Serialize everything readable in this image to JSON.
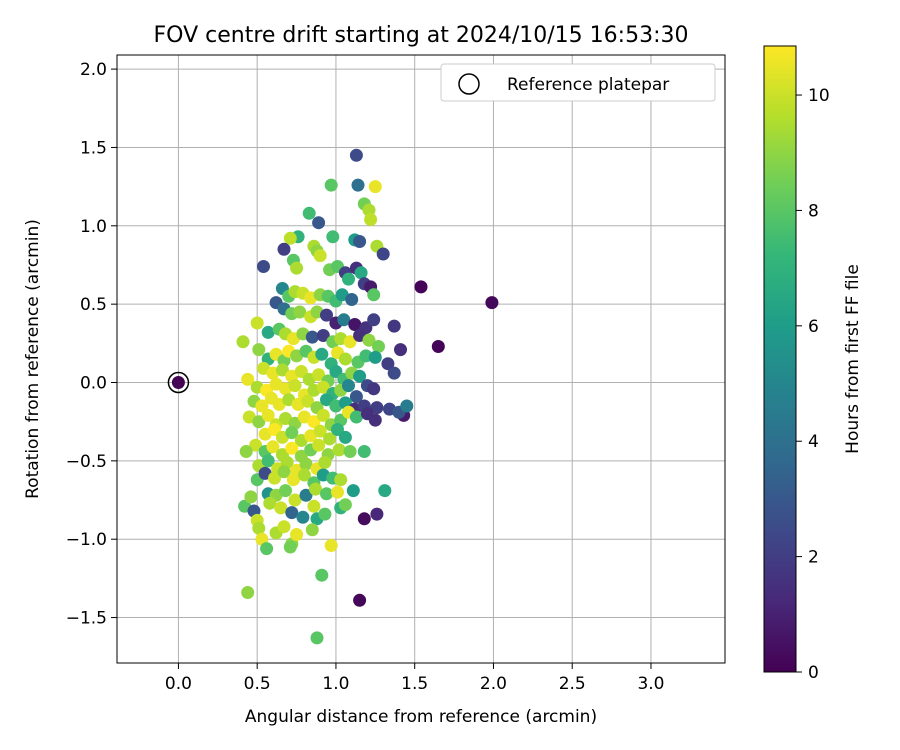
{
  "chart_data": {
    "type": "scatter",
    "title": "FOV centre drift starting at 2024/10/15 16:53:30",
    "xlabel": "Angular distance from reference (arcmin)",
    "ylabel": "Rotation from reference (arcmin)",
    "xlim": [
      -0.39,
      3.47
    ],
    "ylim": [
      -1.79,
      2.09
    ],
    "xticks": [
      0.0,
      0.5,
      1.0,
      1.5,
      2.0,
      2.5,
      3.0
    ],
    "xtick_labels": [
      "0.0",
      "0.5",
      "1.0",
      "1.5",
      "2.0",
      "2.5",
      "3.0"
    ],
    "yticks": [
      -1.5,
      -1.0,
      -0.5,
      0.0,
      0.5,
      1.0,
      1.5,
      2.0
    ],
    "ytick_labels": [
      "−1.5",
      "−1.0",
      "−0.5",
      "0.0",
      "0.5",
      "1.0",
      "1.5",
      "2.0"
    ],
    "grid": true,
    "legend": {
      "label": "Reference platepar",
      "position": "top-right"
    },
    "reference_point": {
      "x": 0.0,
      "y": 0.0
    },
    "colorbar": {
      "label": "Hours from first FF file",
      "colormap": "viridis",
      "range": [
        0,
        10.85
      ],
      "ticks": [
        0,
        2,
        4,
        6,
        8,
        10
      ],
      "tick_labels": [
        "0",
        "2",
        "4",
        "6",
        "8",
        "10"
      ]
    },
    "colors": {
      "viridis": [
        "#440154",
        "#482878",
        "#3e4989",
        "#31688e",
        "#26828e",
        "#1f9e89",
        "#35b779",
        "#6ece58",
        "#b5de2b",
        "#fde725"
      ],
      "grid": "#b0b0b0",
      "reference_edge": "#000000"
    },
    "points": [
      [
        0.0,
        0.0,
        0.05
      ],
      [
        1.54,
        0.61,
        0.1
      ],
      [
        1.99,
        0.51,
        0.2
      ],
      [
        1.65,
        0.23,
        0.1
      ],
      [
        1.15,
        -1.39,
        0.2
      ],
      [
        1.18,
        -0.87,
        0.3
      ],
      [
        1.26,
        -0.84,
        1.2
      ],
      [
        1.43,
        -0.21,
        0.8
      ],
      [
        1.13,
        1.45,
        2.5
      ],
      [
        1.14,
        1.26,
        4.0
      ],
      [
        1.25,
        1.25,
        10.5
      ],
      [
        0.97,
        1.26,
        8.0
      ],
      [
        1.18,
        1.14,
        8.5
      ],
      [
        1.21,
        1.1,
        9.5
      ],
      [
        1.22,
        1.04,
        9.8
      ],
      [
        0.83,
        1.08,
        7.5
      ],
      [
        0.89,
        1.02,
        3.0
      ],
      [
        0.76,
        0.93,
        7.0
      ],
      [
        0.71,
        0.92,
        9.8
      ],
      [
        0.98,
        0.93,
        7.5
      ],
      [
        1.12,
        0.91,
        6.0
      ],
      [
        1.15,
        0.9,
        3.0
      ],
      [
        1.26,
        0.87,
        9.5
      ],
      [
        1.3,
        0.82,
        2.3
      ],
      [
        0.54,
        0.74,
        2.5
      ],
      [
        0.67,
        0.85,
        2.0
      ],
      [
        0.86,
        0.87,
        9.5
      ],
      [
        0.88,
        0.84,
        9.0
      ],
      [
        0.9,
        0.81,
        10.0
      ],
      [
        0.73,
        0.78,
        8.0
      ],
      [
        0.75,
        0.73,
        9.5
      ],
      [
        0.96,
        0.72,
        8.5
      ],
      [
        1.01,
        0.74,
        8.0
      ],
      [
        1.06,
        0.7,
        2.0
      ],
      [
        1.08,
        0.66,
        7.0
      ],
      [
        1.13,
        0.73,
        1.5
      ],
      [
        1.16,
        0.7,
        6.5
      ],
      [
        1.18,
        0.63,
        2.0
      ],
      [
        1.22,
        0.61,
        0.8
      ],
      [
        0.66,
        0.6,
        5.0
      ],
      [
        0.7,
        0.55,
        8.0
      ],
      [
        0.74,
        0.58,
        9.5
      ],
      [
        0.79,
        0.57,
        10.0
      ],
      [
        0.84,
        0.54,
        10.5
      ],
      [
        0.9,
        0.56,
        9.0
      ],
      [
        0.95,
        0.55,
        8.0
      ],
      [
        1.0,
        0.52,
        7.5
      ],
      [
        1.04,
        0.56,
        6.0
      ],
      [
        1.1,
        0.53,
        3.5
      ],
      [
        1.24,
        0.56,
        8.0
      ],
      [
        0.62,
        0.51,
        3.0
      ],
      [
        0.67,
        0.47,
        4.0
      ],
      [
        0.72,
        0.44,
        8.5
      ],
      [
        0.77,
        0.45,
        9.0
      ],
      [
        0.84,
        0.42,
        10.0
      ],
      [
        0.88,
        0.45,
        9.0
      ],
      [
        0.94,
        0.43,
        2.0
      ],
      [
        1.0,
        0.38,
        1.0
      ],
      [
        1.05,
        0.4,
        4.5
      ],
      [
        1.12,
        0.37,
        0.6
      ],
      [
        1.19,
        0.35,
        1.6
      ],
      [
        1.24,
        0.4,
        2.1
      ],
      [
        1.37,
        0.36,
        1.8
      ],
      [
        0.5,
        0.38,
        10.0
      ],
      [
        0.57,
        0.32,
        6.5
      ],
      [
        0.64,
        0.34,
        8.0
      ],
      [
        0.68,
        0.31,
        9.5
      ],
      [
        0.73,
        0.28,
        10.5
      ],
      [
        0.79,
        0.31,
        9.0
      ],
      [
        0.85,
        0.29,
        3.0
      ],
      [
        0.92,
        0.3,
        2.0
      ],
      [
        0.98,
        0.26,
        8.5
      ],
      [
        1.03,
        0.28,
        9.5
      ],
      [
        1.09,
        0.26,
        10.5
      ],
      [
        1.15,
        0.3,
        1.5
      ],
      [
        1.21,
        0.27,
        9.0
      ],
      [
        1.27,
        0.23,
        8.5
      ],
      [
        0.41,
        0.26,
        9.5
      ],
      [
        0.51,
        0.21,
        9.0
      ],
      [
        0.57,
        0.15,
        7.0
      ],
      [
        0.62,
        0.18,
        10.5
      ],
      [
        0.67,
        0.14,
        8.5
      ],
      [
        0.7,
        0.2,
        10.8
      ],
      [
        0.75,
        0.17,
        9.0
      ],
      [
        0.81,
        0.2,
        8.0
      ],
      [
        0.86,
        0.16,
        10.0
      ],
      [
        0.91,
        0.18,
        6.5
      ],
      [
        0.97,
        0.12,
        7.0
      ],
      [
        1.01,
        0.19,
        10.5
      ],
      [
        1.06,
        0.15,
        9.5
      ],
      [
        1.14,
        0.13,
        8.0
      ],
      [
        1.19,
        0.17,
        7.5
      ],
      [
        1.25,
        0.16,
        6.0
      ],
      [
        1.33,
        0.12,
        2.0
      ],
      [
        1.41,
        0.21,
        1.5
      ],
      [
        1.37,
        0.06,
        2.5
      ],
      [
        0.54,
        0.09,
        10.0
      ],
      [
        0.6,
        0.06,
        10.5
      ],
      [
        0.66,
        0.08,
        9.5
      ],
      [
        0.72,
        0.04,
        10.5
      ],
      [
        0.78,
        0.07,
        10.0
      ],
      [
        0.83,
        0.02,
        9.5
      ],
      [
        0.89,
        0.05,
        10.0
      ],
      [
        0.95,
        0.01,
        8.5
      ],
      [
        1.0,
        0.07,
        6.5
      ],
      [
        1.05,
        0.02,
        7.5
      ],
      [
        1.1,
        0.06,
        9.0
      ],
      [
        1.15,
        0.04,
        6.0
      ],
      [
        1.2,
        -0.02,
        2.5
      ],
      [
        1.24,
        -0.04,
        1.8
      ],
      [
        0.44,
        0.02,
        10.5
      ],
      [
        0.5,
        -0.03,
        9.5
      ],
      [
        0.56,
        -0.05,
        10.8
      ],
      [
        0.62,
        -0.01,
        10.5
      ],
      [
        0.68,
        -0.04,
        10.5
      ],
      [
        0.74,
        -0.02,
        10.0
      ],
      [
        0.8,
        -0.08,
        10.5
      ],
      [
        0.86,
        -0.05,
        9.5
      ],
      [
        0.92,
        -0.03,
        10.0
      ],
      [
        0.98,
        -0.07,
        7.0
      ],
      [
        1.03,
        -0.05,
        9.0
      ],
      [
        1.08,
        -0.02,
        5.0
      ],
      [
        1.13,
        -0.09,
        3.0
      ],
      [
        0.48,
        -0.12,
        9.0
      ],
      [
        0.53,
        -0.15,
        10.5
      ],
      [
        0.59,
        -0.1,
        10.5
      ],
      [
        0.64,
        -0.14,
        10.5
      ],
      [
        0.7,
        -0.11,
        9.5
      ],
      [
        0.76,
        -0.14,
        10.5
      ],
      [
        0.82,
        -0.12,
        10.0
      ],
      [
        0.88,
        -0.16,
        9.0
      ],
      [
        0.94,
        -0.11,
        6.5
      ],
      [
        1.0,
        -0.15,
        7.5
      ],
      [
        1.06,
        -0.13,
        6.0
      ],
      [
        1.12,
        -0.17,
        1.5
      ],
      [
        1.18,
        -0.15,
        2.0
      ],
      [
        1.26,
        -0.16,
        2.0
      ],
      [
        1.34,
        -0.17,
        2.3
      ],
      [
        1.4,
        -0.19,
        3.0
      ],
      [
        1.45,
        -0.15,
        4.5
      ],
      [
        0.45,
        -0.22,
        10.0
      ],
      [
        0.51,
        -0.25,
        9.0
      ],
      [
        0.57,
        -0.21,
        10.5
      ],
      [
        0.62,
        -0.27,
        10.0
      ],
      [
        0.68,
        -0.23,
        9.5
      ],
      [
        0.74,
        -0.26,
        9.0
      ],
      [
        0.8,
        -0.22,
        10.5
      ],
      [
        0.86,
        -0.25,
        10.8
      ],
      [
        0.92,
        -0.21,
        10.0
      ],
      [
        0.97,
        -0.27,
        9.0
      ],
      [
        1.03,
        -0.24,
        8.0
      ],
      [
        1.08,
        -0.19,
        10.5
      ],
      [
        1.13,
        -0.22,
        7.5
      ],
      [
        1.2,
        -0.2,
        1.5
      ],
      [
        1.25,
        -0.24,
        1.5
      ],
      [
        0.55,
        -0.33,
        10.5
      ],
      [
        0.61,
        -0.3,
        10.8
      ],
      [
        0.66,
        -0.35,
        10.0
      ],
      [
        0.72,
        -0.32,
        8.5
      ],
      [
        0.78,
        -0.37,
        9.5
      ],
      [
        0.84,
        -0.34,
        10.5
      ],
      [
        0.9,
        -0.31,
        10.0
      ],
      [
        0.96,
        -0.36,
        9.5
      ],
      [
        1.01,
        -0.3,
        7.0
      ],
      [
        1.06,
        -0.35,
        6.5
      ],
      [
        0.49,
        -0.4,
        10.0
      ],
      [
        0.55,
        -0.44,
        8.0
      ],
      [
        0.6,
        -0.41,
        10.5
      ],
      [
        0.66,
        -0.46,
        9.5
      ],
      [
        0.72,
        -0.42,
        10.8
      ],
      [
        0.78,
        -0.47,
        9.0
      ],
      [
        0.84,
        -0.43,
        8.5
      ],
      [
        0.89,
        -0.4,
        10.0
      ],
      [
        0.95,
        -0.46,
        9.0
      ],
      [
        1.02,
        -0.43,
        9.5
      ],
      [
        1.09,
        -0.44,
        8.5
      ],
      [
        1.18,
        -0.44,
        7.5
      ],
      [
        0.43,
        -0.44,
        9.0
      ],
      [
        0.51,
        -0.53,
        9.5
      ],
      [
        0.57,
        -0.5,
        7.5
      ],
      [
        0.63,
        -0.55,
        10.0
      ],
      [
        0.69,
        -0.51,
        9.5
      ],
      [
        0.75,
        -0.56,
        10.5
      ],
      [
        0.81,
        -0.52,
        9.0
      ],
      [
        0.88,
        -0.55,
        10.5
      ],
      [
        0.93,
        -0.51,
        9.5
      ],
      [
        0.5,
        -0.62,
        8.0
      ],
      [
        0.55,
        -0.58,
        2.5
      ],
      [
        0.61,
        -0.61,
        10.0
      ],
      [
        0.67,
        -0.57,
        9.0
      ],
      [
        0.73,
        -0.62,
        10.5
      ],
      [
        0.8,
        -0.59,
        9.5
      ],
      [
        0.86,
        -0.64,
        8.0
      ],
      [
        0.92,
        -0.59,
        6.0
      ],
      [
        0.98,
        -0.61,
        7.5
      ],
      [
        1.03,
        -0.62,
        9.5
      ],
      [
        0.57,
        -0.71,
        5.5
      ],
      [
        0.62,
        -0.72,
        9.0
      ],
      [
        0.68,
        -0.69,
        8.5
      ],
      [
        0.74,
        -0.75,
        10.0
      ],
      [
        0.81,
        -0.72,
        4.5
      ],
      [
        0.87,
        -0.68,
        9.5
      ],
      [
        0.94,
        -0.71,
        8.0
      ],
      [
        1.01,
        -0.7,
        10.5
      ],
      [
        1.11,
        -0.69,
        6.0
      ],
      [
        1.31,
        -0.69,
        6.5
      ],
      [
        0.42,
        -0.79,
        8.0
      ],
      [
        0.46,
        -0.73,
        9.0
      ],
      [
        0.48,
        -0.82,
        3.0
      ],
      [
        0.58,
        -0.77,
        9.5
      ],
      [
        0.65,
        -0.8,
        10.0
      ],
      [
        0.72,
        -0.83,
        3.5
      ],
      [
        0.79,
        -0.86,
        5.0
      ],
      [
        0.86,
        -0.79,
        10.0
      ],
      [
        0.88,
        -0.87,
        6.5
      ],
      [
        0.93,
        -0.84,
        8.0
      ],
      [
        1.03,
        -0.8,
        7.0
      ],
      [
        1.06,
        -0.78,
        8.5
      ],
      [
        0.5,
        -0.88,
        10.0
      ],
      [
        0.51,
        -0.93,
        9.5
      ],
      [
        0.53,
        -1.0,
        10.5
      ],
      [
        0.56,
        -1.06,
        8.0
      ],
      [
        0.62,
        -0.96,
        9.5
      ],
      [
        0.67,
        -0.92,
        10.0
      ],
      [
        0.72,
        -1.03,
        9.0
      ],
      [
        0.71,
        -1.05,
        8.5
      ],
      [
        0.75,
        -0.97,
        10.5
      ],
      [
        0.85,
        -0.94,
        9.0
      ],
      [
        0.97,
        -1.04,
        10.5
      ],
      [
        0.44,
        -1.34,
        9.0
      ],
      [
        0.91,
        -1.23,
        8.0
      ],
      [
        0.88,
        -1.63,
        8.0
      ]
    ]
  }
}
